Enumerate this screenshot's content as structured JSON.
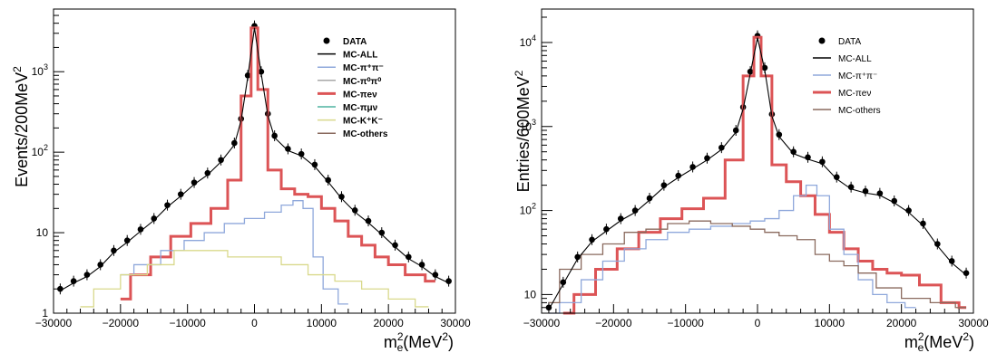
{
  "chart_data": [
    {
      "type": "histogram",
      "ylabel": "Events/200MeV",
      "ylabel_sup": "2",
      "xlabel_main": "m",
      "xlabel_sub": "e",
      "xlabel_sup": "2",
      "xlabel_unit": "(MeV",
      "xlabel_unit_sup": "2",
      "xlabel_close": ")",
      "log_y": true,
      "xlim": [
        -30000,
        30000
      ],
      "ylim": [
        1,
        6000
      ],
      "xticks": [
        "−30000",
        "−20000",
        "−10000",
        "0",
        "10000",
        "20000",
        "30000"
      ],
      "yticks": [
        {
          "base": "1",
          "exp": ""
        },
        {
          "base": "10",
          "exp": ""
        },
        {
          "base": "10",
          "exp": "2"
        },
        {
          "base": "10",
          "exp": "3"
        }
      ],
      "legend": [
        {
          "label": "DATA",
          "color": "#000000",
          "marker": "dot"
        },
        {
          "label": "MC-ALL",
          "color": "#000000",
          "marker": "line"
        },
        {
          "label": "MC-π⁺π⁻",
          "color": "#8fa8db",
          "marker": "line"
        },
        {
          "label": "MC-π⁰π⁰",
          "color": "#a8a8a8",
          "marker": "line"
        },
        {
          "label": "MC-πeν",
          "color": "#dc5456",
          "marker": "line"
        },
        {
          "label": "MC-πμν",
          "color": "#4fb3a0",
          "marker": "line"
        },
        {
          "label": "MC-K⁺K⁻",
          "color": "#d9d98c",
          "marker": "line"
        },
        {
          "label": "MC-others",
          "color": "#8a6a5e",
          "marker": "line"
        }
      ],
      "series": [
        {
          "name": "DATA",
          "points": [
            [
              -29000,
              2
            ],
            [
              -27000,
              2.5
            ],
            [
              -25000,
              3
            ],
            [
              -23000,
              4
            ],
            [
              -21000,
              6
            ],
            [
              -19000,
              8
            ],
            [
              -17000,
              11
            ],
            [
              -15000,
              15
            ],
            [
              -13000,
              22
            ],
            [
              -11000,
              30
            ],
            [
              -9000,
              42
            ],
            [
              -7000,
              55
            ],
            [
              -5000,
              80
            ],
            [
              -3000,
              130
            ],
            [
              -2000,
              260
            ],
            [
              -1000,
              900
            ],
            [
              0,
              3700
            ],
            [
              1000,
              1000
            ],
            [
              2000,
              300
            ],
            [
              3000,
              160
            ],
            [
              5000,
              110
            ],
            [
              7000,
              95
            ],
            [
              9000,
              70
            ],
            [
              11000,
              45
            ],
            [
              13000,
              28
            ],
            [
              15000,
              19
            ],
            [
              17000,
              14
            ],
            [
              19000,
              10
            ],
            [
              21000,
              7
            ],
            [
              23000,
              5
            ],
            [
              25000,
              4
            ],
            [
              27000,
              3
            ],
            [
              29000,
              2.5
            ]
          ]
        },
        {
          "name": "MC-πeν",
          "points": [
            [
              -20000,
              1.5
            ],
            [
              -17000,
              3
            ],
            [
              -14000,
              5
            ],
            [
              -11000,
              9
            ],
            [
              -8000,
              13
            ],
            [
              -5000,
              20
            ],
            [
              -3000,
              45
            ],
            [
              -1000,
              500
            ],
            [
              0,
              3500
            ],
            [
              1000,
              600
            ],
            [
              3000,
              60
            ],
            [
              5000,
              35
            ],
            [
              7000,
              30
            ],
            [
              9000,
              28
            ],
            [
              11000,
              20
            ],
            [
              13000,
              14
            ],
            [
              15000,
              9
            ],
            [
              17000,
              7
            ],
            [
              19000,
              5
            ],
            [
              21000,
              4
            ],
            [
              24000,
              3
            ],
            [
              27000,
              2.5
            ]
          ]
        },
        {
          "name": "MC-π⁺π⁻",
          "points": [
            [
              -20000,
              3
            ],
            [
              -16000,
              4
            ],
            [
              -12000,
              6
            ],
            [
              -9000,
              8
            ],
            [
              -6000,
              10
            ],
            [
              -3000,
              13
            ],
            [
              0,
              15
            ],
            [
              3000,
              18
            ],
            [
              5000,
              22
            ],
            [
              6500,
              25
            ],
            [
              8000,
              20
            ],
            [
              9500,
              5
            ],
            [
              11000,
              2
            ],
            [
              14000,
              1.3
            ]
          ]
        },
        {
          "name": "MC-K⁺K⁻",
          "points": [
            [
              -26000,
              1.2
            ],
            [
              -22000,
              2
            ],
            [
              -18000,
              3
            ],
            [
              -14000,
              4
            ],
            [
              -10000,
              6
            ],
            [
              -6000,
              6
            ],
            [
              -2000,
              5
            ],
            [
              2000,
              5
            ],
            [
              6000,
              4
            ],
            [
              10000,
              3
            ],
            [
              14000,
              2.5
            ],
            [
              18000,
              2
            ],
            [
              22000,
              1.5
            ],
            [
              26000,
              1.2
            ]
          ]
        }
      ]
    },
    {
      "type": "histogram",
      "ylabel": "Entries/600MeV",
      "ylabel_sup": "2",
      "xlabel_main": "m",
      "xlabel_sub": "e",
      "xlabel_sup": "2",
      "xlabel_unit": "(MeV",
      "xlabel_unit_sup": "2",
      "xlabel_close": ")",
      "log_y": true,
      "xlim": [
        -30000,
        30000
      ],
      "ylim": [
        6,
        25000
      ],
      "xticks": [
        "−30000",
        "−20000",
        "−10000",
        "0",
        "10000",
        "20000",
        "30000"
      ],
      "yticks": [
        {
          "base": "10",
          "exp": ""
        },
        {
          "base": "10",
          "exp": "2"
        },
        {
          "base": "10",
          "exp": "3"
        },
        {
          "base": "10",
          "exp": "4"
        }
      ],
      "legend": [
        {
          "label": "DATA",
          "color": "#000000",
          "marker": "dot"
        },
        {
          "label": "MC-ALL",
          "color": "#000000",
          "marker": "line"
        },
        {
          "label": "MC-π⁺π⁻",
          "color": "#8fa8db",
          "marker": "line"
        },
        {
          "label": "MC-πeν",
          "color": "#dc5456",
          "marker": "line"
        },
        {
          "label": "MC-others",
          "color": "#8a6a5e",
          "marker": "line"
        }
      ],
      "series": [
        {
          "name": "DATA",
          "points": [
            [
              -29000,
              7
            ],
            [
              -27000,
              14
            ],
            [
              -25000,
              28
            ],
            [
              -23000,
              45
            ],
            [
              -21000,
              60
            ],
            [
              -19000,
              80
            ],
            [
              -17000,
              100
            ],
            [
              -15000,
              140
            ],
            [
              -13000,
              200
            ],
            [
              -11000,
              260
            ],
            [
              -9000,
              330
            ],
            [
              -7000,
              420
            ],
            [
              -5000,
              560
            ],
            [
              -3000,
              900
            ],
            [
              -2000,
              1700
            ],
            [
              -1000,
              4500
            ],
            [
              0,
              12000
            ],
            [
              1000,
              5000
            ],
            [
              2000,
              1400
            ],
            [
              3000,
              800
            ],
            [
              5000,
              500
            ],
            [
              7000,
              430
            ],
            [
              9000,
              380
            ],
            [
              11000,
              250
            ],
            [
              13000,
              190
            ],
            [
              15000,
              170
            ],
            [
              17000,
              160
            ],
            [
              19000,
              130
            ],
            [
              21000,
              100
            ],
            [
              23000,
              70
            ],
            [
              25000,
              40
            ],
            [
              27000,
              25
            ],
            [
              29000,
              18
            ]
          ]
        },
        {
          "name": "MC-πeν",
          "points": [
            [
              -27000,
              5
            ],
            [
              -24000,
              10
            ],
            [
              -21000,
              20
            ],
            [
              -18000,
              35
            ],
            [
              -15000,
              55
            ],
            [
              -12000,
              80
            ],
            [
              -9000,
              105
            ],
            [
              -6000,
              140
            ],
            [
              -3000,
              400
            ],
            [
              -1000,
              4000
            ],
            [
              0,
              11500
            ],
            [
              1000,
              4000
            ],
            [
              3000,
              350
            ],
            [
              5000,
              220
            ],
            [
              7000,
              150
            ],
            [
              9000,
              90
            ],
            [
              11000,
              55
            ],
            [
              13000,
              35
            ],
            [
              15000,
              25
            ],
            [
              17000,
              20
            ],
            [
              19000,
              18
            ],
            [
              21000,
              17
            ],
            [
              24000,
              13
            ],
            [
              27000,
              8
            ],
            [
              29000,
              7
            ]
          ]
        },
        {
          "name": "MC-π⁺π⁻",
          "points": [
            [
              -29000,
              6
            ],
            [
              -26000,
              8
            ],
            [
              -23000,
              15
            ],
            [
              -20000,
              25
            ],
            [
              -17000,
              35
            ],
            [
              -14000,
              45
            ],
            [
              -11000,
              55
            ],
            [
              -8000,
              60
            ],
            [
              -5000,
              65
            ],
            [
              -2000,
              70
            ],
            [
              0,
              75
            ],
            [
              2000,
              80
            ],
            [
              4000,
              100
            ],
            [
              6000,
              150
            ],
            [
              7500,
              200
            ],
            [
              9000,
              150
            ],
            [
              11000,
              60
            ],
            [
              13000,
              30
            ],
            [
              15000,
              15
            ],
            [
              17000,
              10
            ],
            [
              19000,
              8
            ],
            [
              22000,
              7
            ]
          ]
        },
        {
          "name": "MC-others",
          "points": [
            [
              -29000,
              8
            ],
            [
              -26000,
              20
            ],
            [
              -23000,
              30
            ],
            [
              -20000,
              40
            ],
            [
              -17000,
              55
            ],
            [
              -14000,
              60
            ],
            [
              -11000,
              70
            ],
            [
              -8000,
              75
            ],
            [
              -5000,
              70
            ],
            [
              -2000,
              65
            ],
            [
              0,
              60
            ],
            [
              2000,
              55
            ],
            [
              4000,
              50
            ],
            [
              7000,
              45
            ],
            [
              9000,
              30
            ],
            [
              11000,
              25
            ],
            [
              13000,
              22
            ],
            [
              15000,
              18
            ],
            [
              18000,
              12
            ],
            [
              22000,
              9
            ],
            [
              26000,
              8
            ],
            [
              29000,
              7
            ]
          ]
        }
      ]
    }
  ]
}
